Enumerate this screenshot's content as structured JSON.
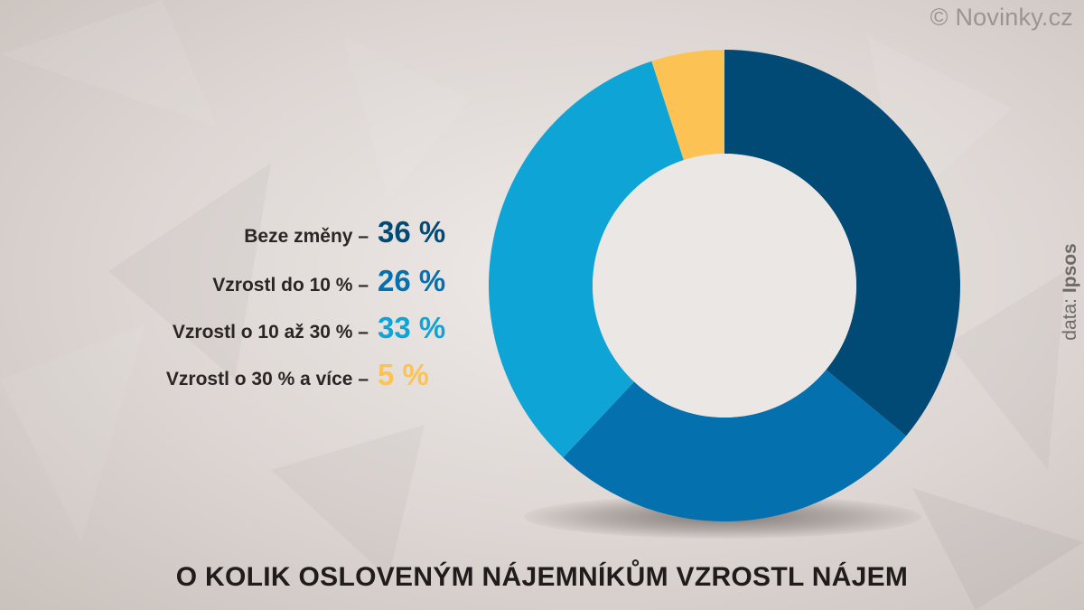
{
  "watermark": "© Novinky.cz",
  "source": {
    "label": "data:",
    "name": "Ipsos"
  },
  "colors": {
    "series": [
      "#004a75",
      "#0570ae",
      "#0ea5d6",
      "#fdc254"
    ],
    "title": "#1f1c1b",
    "label": "#2b2624"
  },
  "chart_data": {
    "type": "pie",
    "style": "donut",
    "title": "O KOLIK OSLOVENÝM NÁJEMNÍKŮM VZROSTL NÁJEM",
    "legend_position": "left",
    "slices": [
      {
        "label": "Beze změny –",
        "value": 36,
        "value_text": "36 %",
        "color": "#004a75"
      },
      {
        "label": "Vzrostl do 10 % –",
        "value": 26,
        "value_text": "26 %",
        "color": "#0570ae"
      },
      {
        "label": "Vzrostl o 10 až 30 % –",
        "value": 33,
        "value_text": "33 %",
        "color": "#0ea5d6"
      },
      {
        "label": "Vzrostl o 30 % a více –",
        "value": 5,
        "value_text": "5 %",
        "color": "#fdc254"
      }
    ]
  }
}
